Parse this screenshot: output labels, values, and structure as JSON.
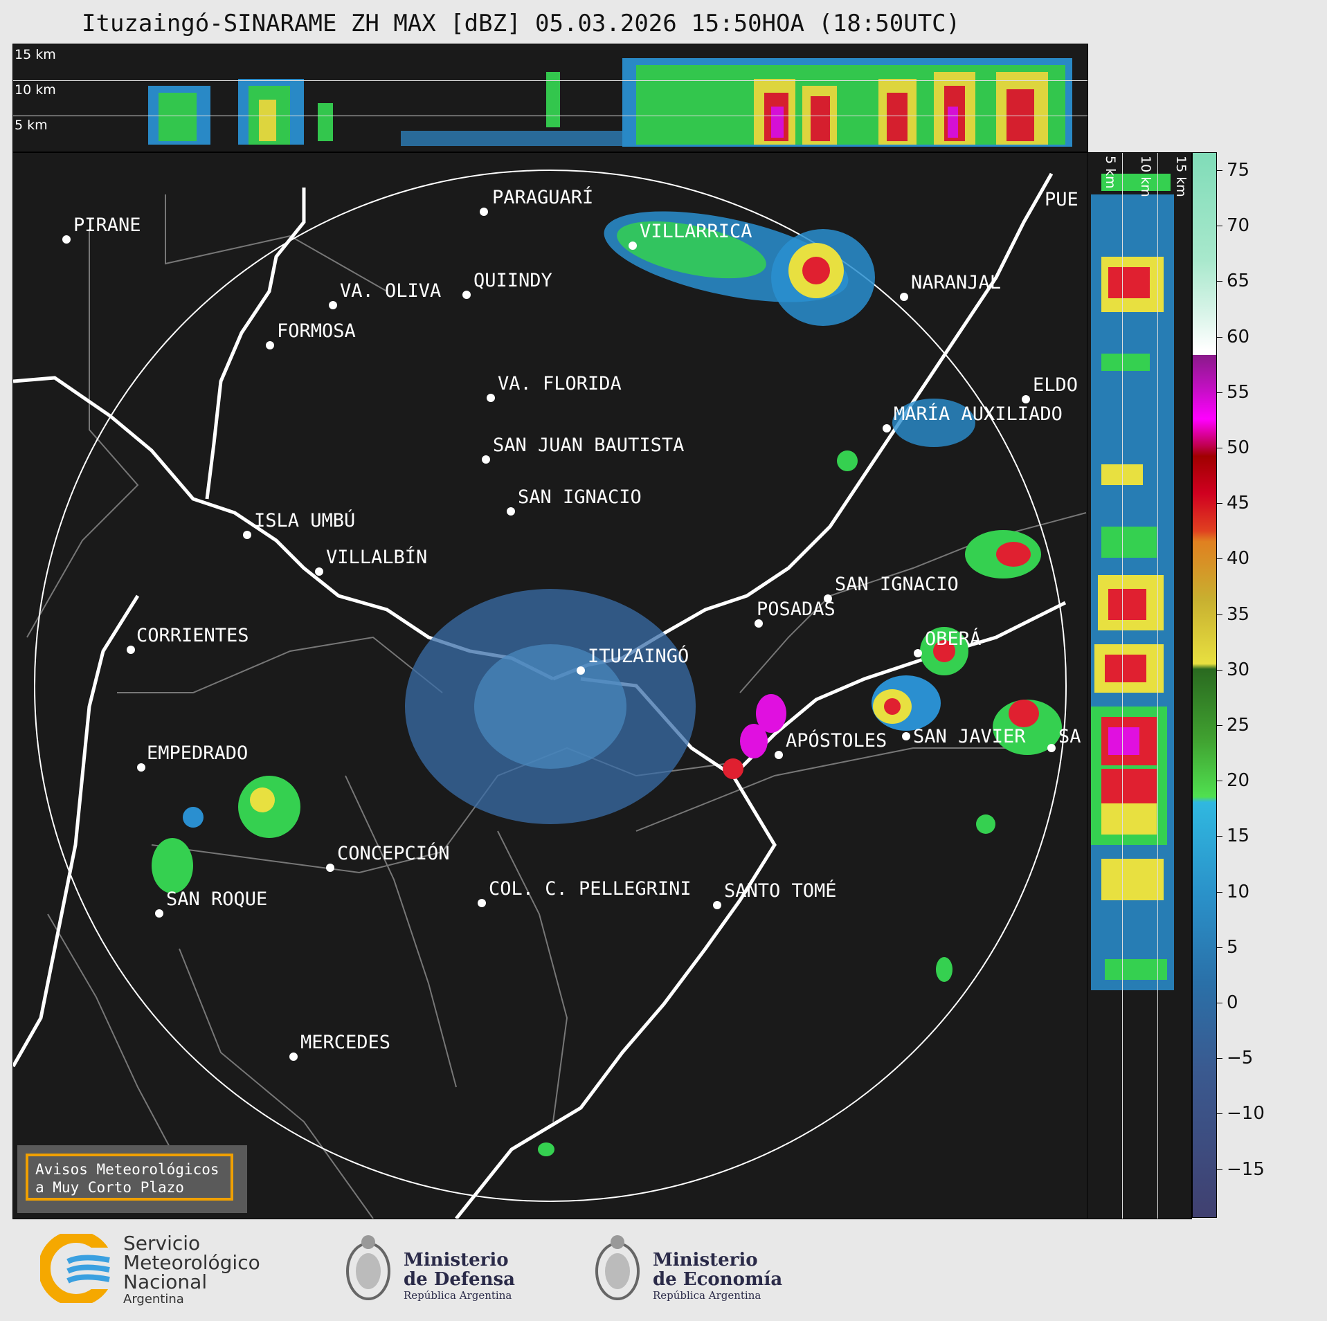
{
  "title": "Ituzaingó-SINARAME ZH MAX [dBZ] 05.03.2026 15:50HOA (18:50UTC)",
  "height_labels": [
    "15 km",
    "10 km",
    "5 km"
  ],
  "cities": [
    {
      "name": "PARAGUARÍ"
    },
    {
      "name": "PIRANE"
    },
    {
      "name": "VILLARRICA"
    },
    {
      "name": "QUIINDY"
    },
    {
      "name": "VA. OLIVA"
    },
    {
      "name": "NARANJAL"
    },
    {
      "name": "FORMOSA"
    },
    {
      "name": "VA. FLORIDA"
    },
    {
      "name": "ELDO"
    },
    {
      "name": "MARÍA AUXILIADO"
    },
    {
      "name": "SAN JUAN BAUTISTA"
    },
    {
      "name": "SAN IGNACIO"
    },
    {
      "name": "ISLA UMBÚ"
    },
    {
      "name": "VILLALBÍN"
    },
    {
      "name": "SAN IGNACIO"
    },
    {
      "name": "POSADAS"
    },
    {
      "name": "CORRIENTES"
    },
    {
      "name": "ITUZAINGÓ"
    },
    {
      "name": "OBERÁ"
    },
    {
      "name": "APÓSTOLES"
    },
    {
      "name": "SAN JAVIER"
    },
    {
      "name": "SA"
    },
    {
      "name": "EMPEDRADO"
    },
    {
      "name": "CONCEPCIÓN"
    },
    {
      "name": "SAN ROQUE"
    },
    {
      "name": "COL. C. PELLEGRINI"
    },
    {
      "name": "SANTO TOMÉ"
    },
    {
      "name": "MERCEDES"
    },
    {
      "name": "PUE"
    }
  ],
  "colorbar": {
    "ticks": [
      "75",
      "70",
      "65",
      "60",
      "55",
      "50",
      "45",
      "40",
      "35",
      "30",
      "25",
      "20",
      "15",
      "10",
      "5",
      "0",
      "−5",
      "−10",
      "−15"
    ]
  },
  "notice": {
    "line1": "Avisos Meteorológicos",
    "line2": "a Muy Corto Plazo"
  },
  "logos": {
    "smn": {
      "line1": "Servicio",
      "line2": "Meteorológico",
      "line3": "Nacional",
      "line4": "Argentina"
    },
    "defensa": {
      "line1": "Ministerio",
      "line2": "de Defensa",
      "line3": "República Argentina"
    },
    "economia": {
      "line1": "Ministerio",
      "line2": "de Economía",
      "line3": "República Argentina"
    }
  }
}
